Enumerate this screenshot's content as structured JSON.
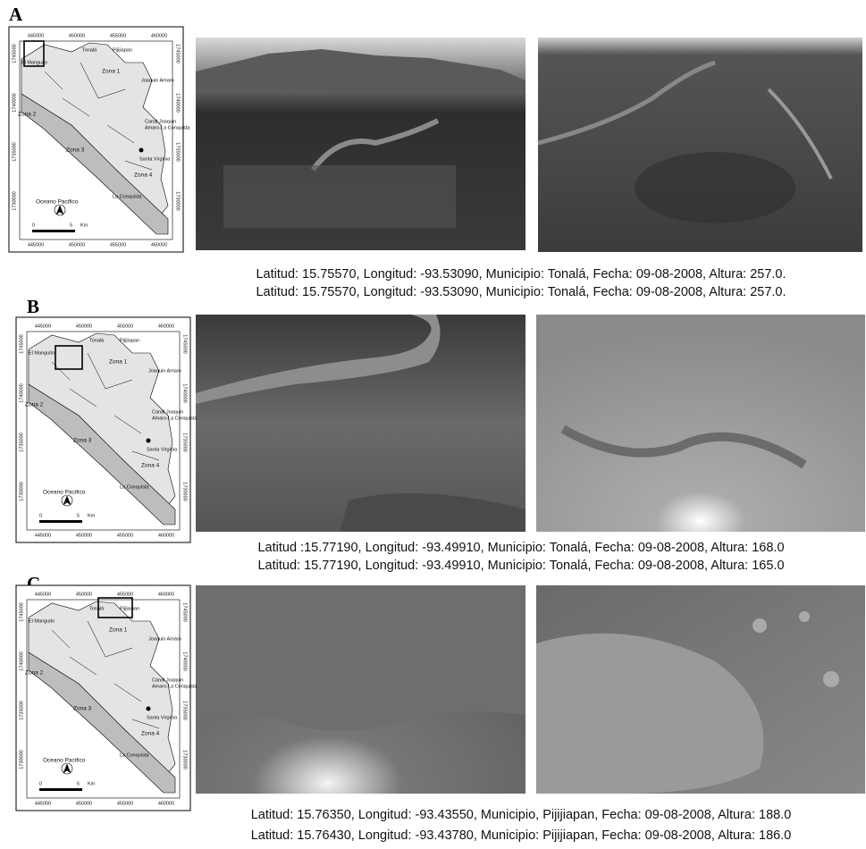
{
  "panels": [
    {
      "label": "A",
      "captions": [
        "Latitud: 15.75570, Longitud: -93.53090, Municipio: Tonalá, Fecha: 09-08-2008, Altura: 257.0.",
        "Latitud: 15.75570, Longitud: -93.53090, Municipio: Tonalá, Fecha: 09-08-2008, Altura: 257.0."
      ]
    },
    {
      "label": "B",
      "captions": [
        "Latitud :15.77190, Longitud: -93.49910, Municipio: Tonalá, Fecha: 09-08-2008,  Altura: 168.0",
        "Latitud: 15.77190, Longitud: -93.49910, Municipio: Tonalá, Fecha: 09-08-2008,  Altura: 165.0"
      ]
    },
    {
      "label": "C",
      "captions": [
        "Latitud: 15.76350, Longitud: -93.43550, Municipio, Pijijiapan, Fecha: 09-08-2008, Altura: 188.0",
        "Latitud: 15.76430, Longitud: -93.43780, Municipio: Pijijiapan, Fecha: 09-08-2008, Altura: 186.0"
      ]
    }
  ],
  "map_labels": [
    "445000",
    "450000",
    "455000",
    "460000",
    "1745000",
    "1740000",
    "1735000",
    "1730000",
    "Tonalá",
    "Pijijiapan",
    "El Manguito",
    "Zona 1",
    "Joaquin Amaro",
    "Zona 2",
    "Canal Joaquin",
    "Amaro-La Conquista",
    "Zona 3",
    "Santa Virginia",
    "Zona 4",
    "Oceano Pacifico",
    "La Conquista",
    "0",
    "5",
    "Km"
  ]
}
